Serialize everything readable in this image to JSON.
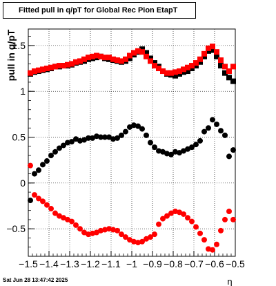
{
  "chart_data": {
    "type": "scatter",
    "title": "Fitted pull in q/pT for Global Rec Pion EtapT",
    "xlabel": "η",
    "ylabel": "pull in q/pT",
    "xlim": [
      -1.5,
      -0.5
    ],
    "ylim": [
      -0.8,
      1.68
    ],
    "x_ticks": [
      -1.5,
      -1.4,
      -1.3,
      -1.2,
      -1.1,
      -1,
      -0.9,
      -0.8,
      -0.7,
      -0.6,
      -0.5
    ],
    "x_tick_labels": [
      "−1.5",
      "−1.4",
      "−1.3",
      "−1.2",
      "−1.1",
      "−1",
      "−0.9",
      "−0.8",
      "−0.7",
      "−0.6",
      "−0.5"
    ],
    "y_ticks": [
      -0.5,
      0,
      0.5,
      1,
      1.5
    ],
    "y_tick_labels": [
      "−0.5",
      "0",
      "0.5",
      "1",
      "1.5"
    ],
    "grid": true,
    "x": [
      -1.49,
      -1.47,
      -1.45,
      -1.43,
      -1.41,
      -1.39,
      -1.37,
      -1.35,
      -1.33,
      -1.31,
      -1.29,
      -1.27,
      -1.25,
      -1.23,
      -1.21,
      -1.19,
      -1.17,
      -1.15,
      -1.13,
      -1.11,
      -1.09,
      -1.07,
      -1.05,
      -1.03,
      -1.01,
      -0.99,
      -0.97,
      -0.95,
      -0.93,
      -0.91,
      -0.89,
      -0.87,
      -0.85,
      -0.83,
      -0.81,
      -0.79,
      -0.77,
      -0.75,
      -0.73,
      -0.71,
      -0.69,
      -0.67,
      -0.65,
      -0.63,
      -0.61,
      -0.59,
      -0.57,
      -0.55,
      -0.53,
      -0.51
    ],
    "series": [
      {
        "marker": "square",
        "color": "#000000",
        "values": [
          1.19,
          1.21,
          1.22,
          1.23,
          1.24,
          1.25,
          1.27,
          1.27,
          1.28,
          1.28,
          1.29,
          1.31,
          1.32,
          1.33,
          1.35,
          1.36,
          1.37,
          1.38,
          1.36,
          1.35,
          1.34,
          1.33,
          1.32,
          1.33,
          1.36,
          1.4,
          1.43,
          1.46,
          1.42,
          1.36,
          1.31,
          1.27,
          1.22,
          1.19,
          1.18,
          1.17,
          1.19,
          1.21,
          1.22,
          1.25,
          1.28,
          1.32,
          1.38,
          1.44,
          1.45,
          1.38,
          1.28,
          1.2,
          1.15,
          1.11
        ]
      },
      {
        "marker": "square",
        "color": "#ff0000",
        "values": [
          1.2,
          1.22,
          1.23,
          1.24,
          1.25,
          1.26,
          1.27,
          1.28,
          1.28,
          1.29,
          1.3,
          1.32,
          1.33,
          1.35,
          1.37,
          1.38,
          1.39,
          1.38,
          1.37,
          1.37,
          1.35,
          1.34,
          1.33,
          1.35,
          1.39,
          1.42,
          1.44,
          1.43,
          1.38,
          1.33,
          1.28,
          1.25,
          1.22,
          1.2,
          1.2,
          1.21,
          1.22,
          1.24,
          1.26,
          1.28,
          1.31,
          1.35,
          1.41,
          1.47,
          1.49,
          1.43,
          1.34,
          1.27,
          1.22,
          1.27
        ]
      },
      {
        "marker": "circle",
        "color": "#000000",
        "values": [
          -0.19,
          0.1,
          0.14,
          0.2,
          0.24,
          0.3,
          0.34,
          0.38,
          0.41,
          0.44,
          0.45,
          0.48,
          0.46,
          0.47,
          0.49,
          0.49,
          0.51,
          0.5,
          0.5,
          0.5,
          0.48,
          0.49,
          0.52,
          0.56,
          0.61,
          0.63,
          0.62,
          0.59,
          0.52,
          0.44,
          0.39,
          0.35,
          0.34,
          0.32,
          0.31,
          0.34,
          0.33,
          0.35,
          0.37,
          0.39,
          0.42,
          0.46,
          0.56,
          0.6,
          0.69,
          0.64,
          0.57,
          0.52,
          0.29,
          0.36
        ]
      },
      {
        "marker": "circle",
        "color": "#ff0000",
        "values": [
          0.19,
          -0.13,
          -0.17,
          -0.2,
          -0.24,
          -0.28,
          -0.33,
          -0.36,
          -0.38,
          -0.4,
          -0.42,
          -0.46,
          -0.5,
          -0.54,
          -0.56,
          -0.55,
          -0.54,
          -0.52,
          -0.51,
          -0.5,
          -0.51,
          -0.52,
          -0.56,
          -0.59,
          -0.62,
          -0.64,
          -0.65,
          -0.64,
          -0.61,
          -0.59,
          -0.56,
          -0.45,
          -0.39,
          -0.36,
          -0.33,
          -0.31,
          -0.32,
          -0.34,
          -0.38,
          -0.42,
          -0.48,
          -0.55,
          -0.62,
          -0.72,
          -0.73,
          -0.67,
          -0.52,
          -0.4,
          -0.31,
          -0.4
        ]
      }
    ]
  },
  "footer": {
    "timestamp": "Sat Jun 28 13:47:42 2025"
  }
}
